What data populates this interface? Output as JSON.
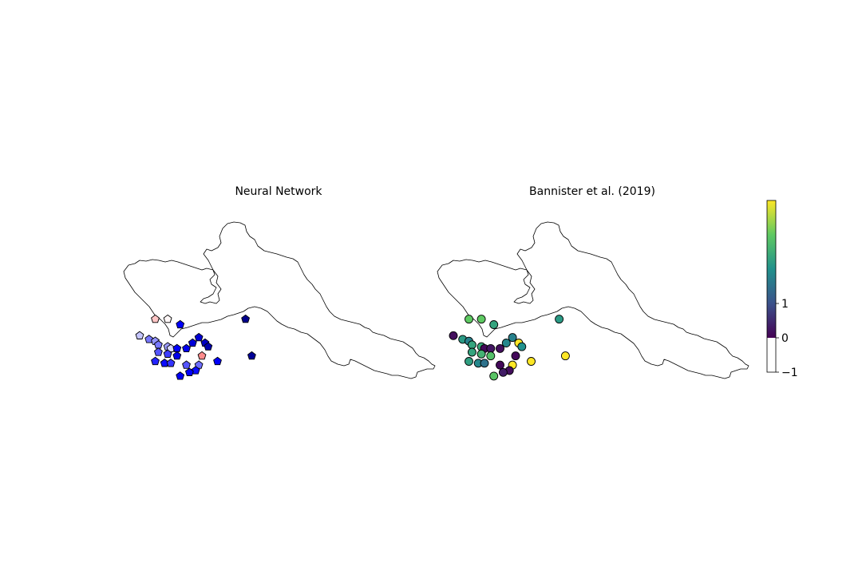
{
  "panels": {
    "left": {
      "title": "Neural Network",
      "marker": "pentagon",
      "stations": [
        {
          "lon": 0.05,
          "lat": 0.32,
          "v": -0.15
        },
        {
          "lon": 0.09,
          "lat": 0.32,
          "v": -0.02
        },
        {
          "lon": 0.13,
          "lat": 0.35,
          "v": 0.55
        },
        {
          "lon": 0.0,
          "lat": 0.41,
          "v": 0.12
        },
        {
          "lon": 0.03,
          "lat": 0.43,
          "v": 0.28
        },
        {
          "lon": 0.05,
          "lat": 0.44,
          "v": 0.22
        },
        {
          "lon": 0.06,
          "lat": 0.46,
          "v": 0.28
        },
        {
          "lon": 0.09,
          "lat": 0.47,
          "v": 0.2
        },
        {
          "lon": 0.1,
          "lat": 0.48,
          "v": 0.08
        },
        {
          "lon": 0.12,
          "lat": 0.48,
          "v": 0.55
        },
        {
          "lon": 0.15,
          "lat": 0.48,
          "v": 0.6
        },
        {
          "lon": 0.17,
          "lat": 0.45,
          "v": 0.7
        },
        {
          "lon": 0.19,
          "lat": 0.42,
          "v": 0.72
        },
        {
          "lon": 0.21,
          "lat": 0.45,
          "v": 0.8
        },
        {
          "lon": 0.22,
          "lat": 0.47,
          "v": 0.9
        },
        {
          "lon": 0.06,
          "lat": 0.5,
          "v": 0.35
        },
        {
          "lon": 0.09,
          "lat": 0.51,
          "v": 0.4
        },
        {
          "lon": 0.12,
          "lat": 0.52,
          "v": 0.62
        },
        {
          "lon": 0.2,
          "lat": 0.52,
          "v": -0.3
        },
        {
          "lon": 0.05,
          "lat": 0.55,
          "v": 0.45
        },
        {
          "lon": 0.08,
          "lat": 0.56,
          "v": 0.5
        },
        {
          "lon": 0.1,
          "lat": 0.56,
          "v": 0.42
        },
        {
          "lon": 0.15,
          "lat": 0.57,
          "v": 0.35
        },
        {
          "lon": 0.19,
          "lat": 0.57,
          "v": 0.3
        },
        {
          "lon": 0.25,
          "lat": 0.55,
          "v": 0.55
        },
        {
          "lon": 0.18,
          "lat": 0.6,
          "v": 0.5
        },
        {
          "lon": 0.16,
          "lat": 0.61,
          "v": 0.55
        },
        {
          "lon": 0.13,
          "lat": 0.63,
          "v": 0.58
        },
        {
          "lon": 0.34,
          "lat": 0.32,
          "v": 1.05
        },
        {
          "lon": 0.36,
          "lat": 0.52,
          "v": 1.0
        }
      ]
    },
    "right": {
      "title": "Bannister et al. (2019)",
      "marker": "circle",
      "stations": [
        {
          "lon": 0.05,
          "lat": 0.32,
          "v": 1.8
        },
        {
          "lon": 0.09,
          "lat": 0.32,
          "v": 1.8
        },
        {
          "lon": 0.13,
          "lat": 0.35,
          "v": 1.4
        },
        {
          "lon": 0.0,
          "lat": 0.41,
          "v": 0.1
        },
        {
          "lon": 0.03,
          "lat": 0.43,
          "v": 1.3
        },
        {
          "lon": 0.05,
          "lat": 0.44,
          "v": 1.05
        },
        {
          "lon": 0.06,
          "lat": 0.46,
          "v": 1.4
        },
        {
          "lon": 0.09,
          "lat": 0.47,
          "v": 1.45
        },
        {
          "lon": 0.1,
          "lat": 0.48,
          "v": 0.05
        },
        {
          "lon": 0.12,
          "lat": 0.48,
          "v": 0.15
        },
        {
          "lon": 0.15,
          "lat": 0.48,
          "v": 0.1
        },
        {
          "lon": 0.17,
          "lat": 0.45,
          "v": 1.1
        },
        {
          "lon": 0.19,
          "lat": 0.42,
          "v": 1.05
        },
        {
          "lon": 0.21,
          "lat": 0.45,
          "v": 2.4
        },
        {
          "lon": 0.22,
          "lat": 0.47,
          "v": 1.2
        },
        {
          "lon": 0.06,
          "lat": 0.5,
          "v": 1.4
        },
        {
          "lon": 0.09,
          "lat": 0.51,
          "v": 1.55
        },
        {
          "lon": 0.12,
          "lat": 0.52,
          "v": 1.7
        },
        {
          "lon": 0.2,
          "lat": 0.52,
          "v": 0.05
        },
        {
          "lon": 0.05,
          "lat": 0.55,
          "v": 1.35
        },
        {
          "lon": 0.08,
          "lat": 0.56,
          "v": 1.1
        },
        {
          "lon": 0.1,
          "lat": 0.56,
          "v": 0.9
        },
        {
          "lon": 0.15,
          "lat": 0.57,
          "v": 0.05
        },
        {
          "lon": 0.19,
          "lat": 0.57,
          "v": 2.4
        },
        {
          "lon": 0.25,
          "lat": 0.55,
          "v": 2.4
        },
        {
          "lon": 0.18,
          "lat": 0.6,
          "v": 0.1
        },
        {
          "lon": 0.16,
          "lat": 0.61,
          "v": 0.2
        },
        {
          "lon": 0.13,
          "lat": 0.63,
          "v": 1.75
        },
        {
          "lon": 0.34,
          "lat": 0.32,
          "v": 1.3
        },
        {
          "lon": 0.36,
          "lat": 0.52,
          "v": 2.4
        }
      ]
    }
  },
  "colorbar": {
    "ticks": [
      {
        "value": 1,
        "label": "1"
      },
      {
        "value": 0,
        "label": "0"
      },
      {
        "value": -1,
        "label": "−1"
      }
    ],
    "range": [
      -1,
      2.5
    ],
    "colors": {
      "viridis": [
        "#440154",
        "#3b528b",
        "#21918c",
        "#5ec962",
        "#fde725"
      ],
      "negative_end": "#ffffff"
    }
  },
  "colors": {
    "blue_scale": [
      "#ffffff",
      "#0000ff",
      "#00008b"
    ],
    "red_scale": [
      "#ffffff",
      "#ff6666"
    ],
    "outline": "#000000"
  }
}
